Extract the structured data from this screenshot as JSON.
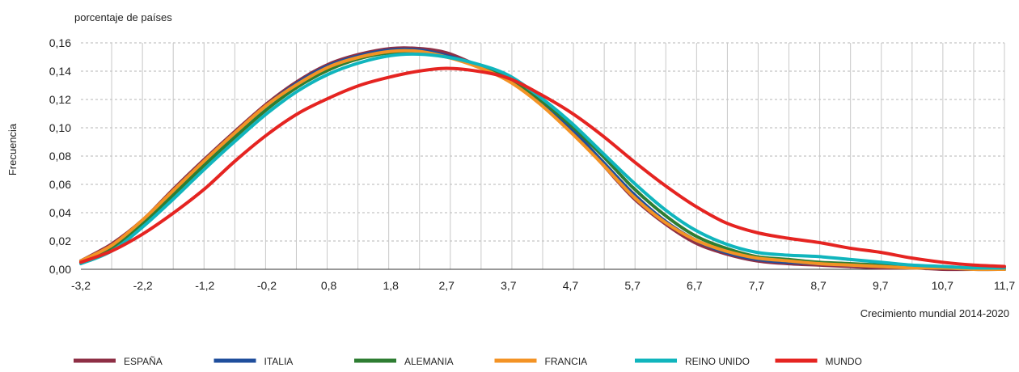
{
  "chart_data": {
    "type": "line",
    "unit_label": "porcentaje de países",
    "ylabel": "Frecuencia",
    "xlabel": "Crecimiento mundial 2014-2020",
    "ylim": [
      0,
      0.16
    ],
    "y_ticks": [
      "0,00",
      "0,02",
      "0,04",
      "0,06",
      "0,08",
      "0,10",
      "0,12",
      "0,14",
      "0,16"
    ],
    "x_tick_labels": [
      "-3,2",
      "-2,2",
      "-1,2",
      "-0,2",
      "0,8",
      "1,8",
      "2,7",
      "3,7",
      "4,7",
      "5,7",
      "6,7",
      "7,7",
      "8,7",
      "9,7",
      "10,7",
      "11,7"
    ],
    "x": [
      -3.2,
      -2.7,
      -2.2,
      -1.7,
      -1.2,
      -0.7,
      -0.2,
      0.3,
      0.8,
      1.3,
      1.8,
      2.25,
      2.7,
      3.2,
      3.7,
      4.2,
      4.7,
      5.2,
      5.7,
      6.2,
      6.7,
      7.2,
      7.7,
      8.2,
      8.7,
      9.2,
      9.7,
      10.2,
      10.7,
      11.2,
      11.7
    ],
    "grid": true,
    "legend_position": "bottom",
    "series": [
      {
        "name": "ESPAÑA",
        "color": "#8e2f45",
        "values": [
          0.006,
          0.018,
          0.035,
          0.057,
          0.078,
          0.098,
          0.117,
          0.133,
          0.145,
          0.152,
          0.156,
          0.156,
          0.153,
          0.144,
          0.134,
          0.118,
          0.099,
          0.075,
          0.051,
          0.033,
          0.019,
          0.011,
          0.006,
          0.004,
          0.003,
          0.002,
          0.001,
          0.001,
          0.0,
          0.0,
          0.0
        ]
      },
      {
        "name": "ITALIA",
        "color": "#1f4e9c",
        "values": [
          0.006,
          0.016,
          0.034,
          0.056,
          0.077,
          0.097,
          0.116,
          0.132,
          0.144,
          0.151,
          0.155,
          0.155,
          0.151,
          0.144,
          0.134,
          0.119,
          0.1,
          0.077,
          0.054,
          0.035,
          0.021,
          0.012,
          0.007,
          0.005,
          0.004,
          0.003,
          0.002,
          0.001,
          0.001,
          0.0,
          0.0
        ]
      },
      {
        "name": "ALEMANIA",
        "color": "#2e7d32",
        "values": [
          0.005,
          0.015,
          0.032,
          0.053,
          0.074,
          0.094,
          0.113,
          0.129,
          0.141,
          0.149,
          0.153,
          0.153,
          0.15,
          0.144,
          0.135,
          0.12,
          0.102,
          0.081,
          0.058,
          0.039,
          0.024,
          0.015,
          0.009,
          0.007,
          0.005,
          0.004,
          0.003,
          0.002,
          0.001,
          0.001,
          0.0
        ]
      },
      {
        "name": "FRANCIA",
        "color": "#f39325",
        "values": [
          0.006,
          0.017,
          0.035,
          0.056,
          0.077,
          0.097,
          0.116,
          0.131,
          0.143,
          0.15,
          0.154,
          0.154,
          0.15,
          0.143,
          0.133,
          0.117,
          0.097,
          0.075,
          0.052,
          0.034,
          0.021,
          0.013,
          0.008,
          0.006,
          0.004,
          0.003,
          0.002,
          0.001,
          0.001,
          0.0,
          0.0
        ]
      },
      {
        "name": "REINO UNIDO",
        "color": "#10b5bd",
        "values": [
          0.004,
          0.013,
          0.03,
          0.05,
          0.071,
          0.091,
          0.11,
          0.126,
          0.138,
          0.146,
          0.151,
          0.152,
          0.15,
          0.145,
          0.137,
          0.122,
          0.104,
          0.083,
          0.062,
          0.043,
          0.028,
          0.018,
          0.012,
          0.01,
          0.009,
          0.007,
          0.005,
          0.003,
          0.002,
          0.001,
          0.001
        ]
      },
      {
        "name": "MUNDO",
        "color": "#e52421",
        "values": [
          0.005,
          0.013,
          0.025,
          0.04,
          0.057,
          0.077,
          0.095,
          0.11,
          0.121,
          0.13,
          0.136,
          0.14,
          0.142,
          0.14,
          0.135,
          0.124,
          0.111,
          0.095,
          0.077,
          0.06,
          0.045,
          0.033,
          0.026,
          0.022,
          0.019,
          0.015,
          0.012,
          0.008,
          0.005,
          0.003,
          0.002
        ]
      }
    ]
  }
}
